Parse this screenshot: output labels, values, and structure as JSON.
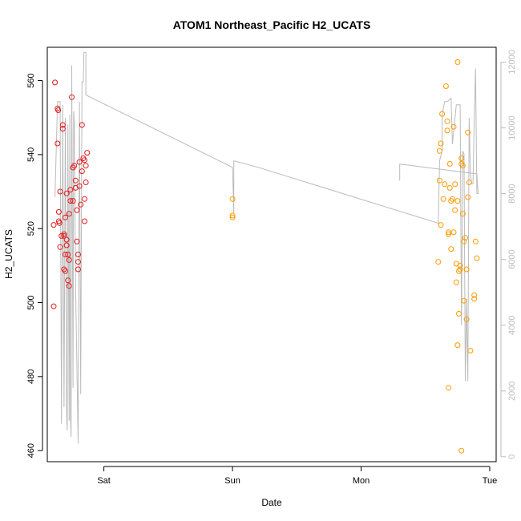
{
  "chart_data": {
    "type": "scatter",
    "title": "ATOM1 Northeast_Pacific H2_UCATS",
    "xlabel": "Date",
    "ylabel": "H2_UCATS",
    "x_ticks": [
      "Sat",
      "Sun",
      "Mon",
      "Tue"
    ],
    "x_range_days": [
      -0.44,
      3.05
    ],
    "y_left_range": [
      457,
      569
    ],
    "y_left_ticks": [
      "460",
      "480",
      "500",
      "520",
      "540",
      "560"
    ],
    "y_right_range": [
      -150,
      12450
    ],
    "y_right_ticks": [
      "0",
      "2000",
      "4000",
      "6000",
      "8000",
      "10000",
      "12000"
    ],
    "grid": false,
    "legend": "none",
    "colors": {
      "series_red": "#e31a1c",
      "series_orange": "#ff9900",
      "altitude": "#bbbbbb"
    },
    "series": [
      {
        "color": "red",
        "points": [
          [
            -0.38,
            559.5
          ],
          [
            -0.36,
            552.5
          ],
          [
            -0.355,
            552
          ],
          [
            -0.36,
            543
          ],
          [
            -0.32,
            548
          ],
          [
            -0.32,
            547
          ],
          [
            -0.34,
            530
          ],
          [
            -0.35,
            524.5
          ],
          [
            -0.35,
            522
          ],
          [
            -0.345,
            521.5
          ],
          [
            -0.39,
            521
          ],
          [
            -0.33,
            518
          ],
          [
            -0.31,
            518.5
          ],
          [
            -0.29,
            517
          ],
          [
            -0.34,
            515
          ],
          [
            -0.29,
            515.5
          ],
          [
            -0.3,
            513
          ],
          [
            -0.28,
            513
          ],
          [
            -0.27,
            511.5
          ],
          [
            -0.31,
            509
          ],
          [
            -0.3,
            508.5
          ],
          [
            -0.28,
            506
          ],
          [
            -0.27,
            504.5
          ],
          [
            -0.39,
            499
          ],
          [
            -0.29,
            529.5
          ],
          [
            -0.27,
            524
          ],
          [
            -0.26,
            530.5
          ],
          [
            -0.26,
            527.5
          ],
          [
            -0.24,
            527.5
          ],
          [
            -0.24,
            536.5
          ],
          [
            -0.22,
            531
          ],
          [
            -0.23,
            537
          ],
          [
            -0.22,
            533
          ],
          [
            -0.21,
            525
          ],
          [
            -0.21,
            516.5
          ],
          [
            -0.2,
            513
          ],
          [
            -0.2,
            511
          ],
          [
            -0.2,
            509
          ],
          [
            -0.19,
            531.5
          ],
          [
            -0.19,
            538
          ],
          [
            -0.18,
            526.5
          ],
          [
            -0.17,
            535.5
          ],
          [
            -0.16,
            539
          ],
          [
            -0.15,
            538.5
          ],
          [
            -0.14,
            537
          ],
          [
            -0.14,
            532.5
          ],
          [
            -0.15,
            528
          ],
          [
            -0.15,
            522
          ],
          [
            -0.13,
            540.5
          ],
          [
            -0.17,
            548
          ],
          [
            -0.25,
            555.5
          ],
          [
            -0.3,
            523
          ],
          [
            -0.31,
            518
          ]
        ]
      },
      {
        "color": "orange",
        "points": [
          [
            1.0,
            528
          ],
          [
            1.0,
            523.5
          ],
          [
            1.0,
            523
          ],
          [
            2.6,
            511
          ],
          [
            2.61,
            533
          ],
          [
            2.61,
            541
          ],
          [
            2.62,
            543
          ],
          [
            2.63,
            551
          ],
          [
            2.64,
            528
          ],
          [
            2.65,
            532
          ],
          [
            2.66,
            558.5
          ],
          [
            2.67,
            549
          ],
          [
            2.67,
            546.5
          ],
          [
            2.68,
            519
          ],
          [
            2.68,
            518.5
          ],
          [
            2.69,
            537.5
          ],
          [
            2.69,
            531
          ],
          [
            2.7,
            527.5
          ],
          [
            2.7,
            514.5
          ],
          [
            2.71,
            528
          ],
          [
            2.72,
            519
          ],
          [
            2.72,
            547.5
          ],
          [
            2.73,
            532
          ],
          [
            2.73,
            525
          ],
          [
            2.74,
            510.5
          ],
          [
            2.74,
            505.5
          ],
          [
            2.75,
            527.5
          ],
          [
            2.75,
            488.5
          ],
          [
            2.76,
            508.5
          ],
          [
            2.76,
            497
          ],
          [
            2.77,
            510
          ],
          [
            2.77,
            509
          ],
          [
            2.78,
            539
          ],
          [
            2.78,
            537.5
          ],
          [
            2.79,
            537
          ],
          [
            2.79,
            524
          ],
          [
            2.8,
            516.5
          ],
          [
            2.8,
            500.5
          ],
          [
            2.81,
            517.5
          ],
          [
            2.82,
            495.5
          ],
          [
            2.82,
            509
          ],
          [
            2.83,
            528.5
          ],
          [
            2.83,
            546
          ],
          [
            2.84,
            532.5
          ],
          [
            2.85,
            487
          ],
          [
            2.88,
            502
          ],
          [
            2.88,
            501
          ],
          [
            2.9,
            512
          ],
          [
            2.89,
            516.5
          ],
          [
            2.75,
            565
          ],
          [
            2.68,
            477
          ],
          [
            2.62,
            521
          ],
          [
            2.78,
            460
          ]
        ]
      }
    ],
    "altitude_trace": [
      [
        -0.38,
        7900
      ],
      [
        -0.36,
        10800
      ],
      [
        -0.34,
        10800
      ],
      [
        -0.33,
        1000
      ],
      [
        -0.32,
        10700
      ],
      [
        -0.31,
        1500
      ],
      [
        -0.3,
        10300
      ],
      [
        -0.29,
        1300
      ],
      [
        -0.285,
        800
      ],
      [
        -0.28,
        10100
      ],
      [
        -0.27,
        1100
      ],
      [
        -0.265,
        10400
      ],
      [
        -0.26,
        1200
      ],
      [
        -0.255,
        600
      ],
      [
        -0.25,
        11900
      ],
      [
        -0.24,
        2100
      ],
      [
        -0.235,
        10500
      ],
      [
        -0.23,
        10200
      ],
      [
        -0.22,
        5200
      ],
      [
        -0.2,
        400
      ],
      [
        -0.19,
        10800
      ],
      [
        -0.18,
        1900
      ],
      [
        -0.17,
        11400
      ],
      [
        -0.16,
        11400
      ],
      [
        -0.155,
        12300
      ],
      [
        -0.14,
        12300
      ],
      [
        -0.14,
        11000
      ],
      [
        1.0,
        8800
      ],
      [
        1.01,
        7400
      ],
      [
        1.01,
        9000
      ],
      [
        1.2,
        8800
      ],
      [
        2.6,
        7100
      ],
      [
        2.61,
        9000
      ],
      [
        2.63,
        9300
      ],
      [
        2.63,
        10400
      ],
      [
        2.65,
        10800
      ],
      [
        2.67,
        10800
      ],
      [
        2.7,
        10900
      ],
      [
        2.71,
        9500
      ],
      [
        2.74,
        10700
      ],
      [
        2.77,
        10700
      ],
      [
        2.78,
        4000
      ],
      [
        2.79,
        9300
      ],
      [
        2.8,
        9200
      ],
      [
        2.81,
        2300
      ],
      [
        2.82,
        4800
      ],
      [
        2.83,
        2300
      ],
      [
        2.84,
        10300
      ],
      [
        2.85,
        8600
      ],
      [
        2.86,
        8300
      ],
      [
        2.87,
        8300
      ],
      [
        2.88,
        10300
      ],
      [
        2.89,
        11800
      ],
      [
        2.9,
        8000
      ],
      [
        2.91,
        8000
      ],
      [
        2.9,
        8600
      ],
      [
        2.3,
        8900
      ],
      [
        2.3,
        8400
      ]
    ]
  }
}
